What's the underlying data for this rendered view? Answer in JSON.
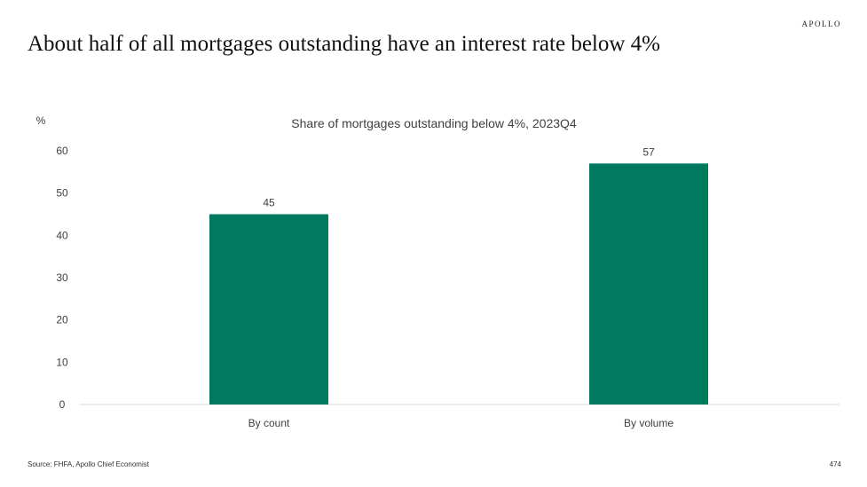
{
  "brand": "APOLLO",
  "title": "About half of all mortgages outstanding have an interest rate below 4%",
  "source": "Source: FHFA, Apollo Chief Economist",
  "page_number": "474",
  "chart_data": {
    "type": "bar",
    "title": "Share of mortgages outstanding below 4%, 2023Q4",
    "ylabel": "%",
    "xlabel": "",
    "categories": [
      "By count",
      "By volume"
    ],
    "values": [
      45,
      57
    ],
    "data_labels": [
      "45",
      "57"
    ],
    "ylim": [
      0,
      60
    ],
    "yticks": [
      0,
      10,
      20,
      30,
      40,
      50,
      60
    ],
    "grid": false,
    "legend": "none",
    "bar_color": "#007A5E",
    "axis_color": "#d9d9d9"
  }
}
